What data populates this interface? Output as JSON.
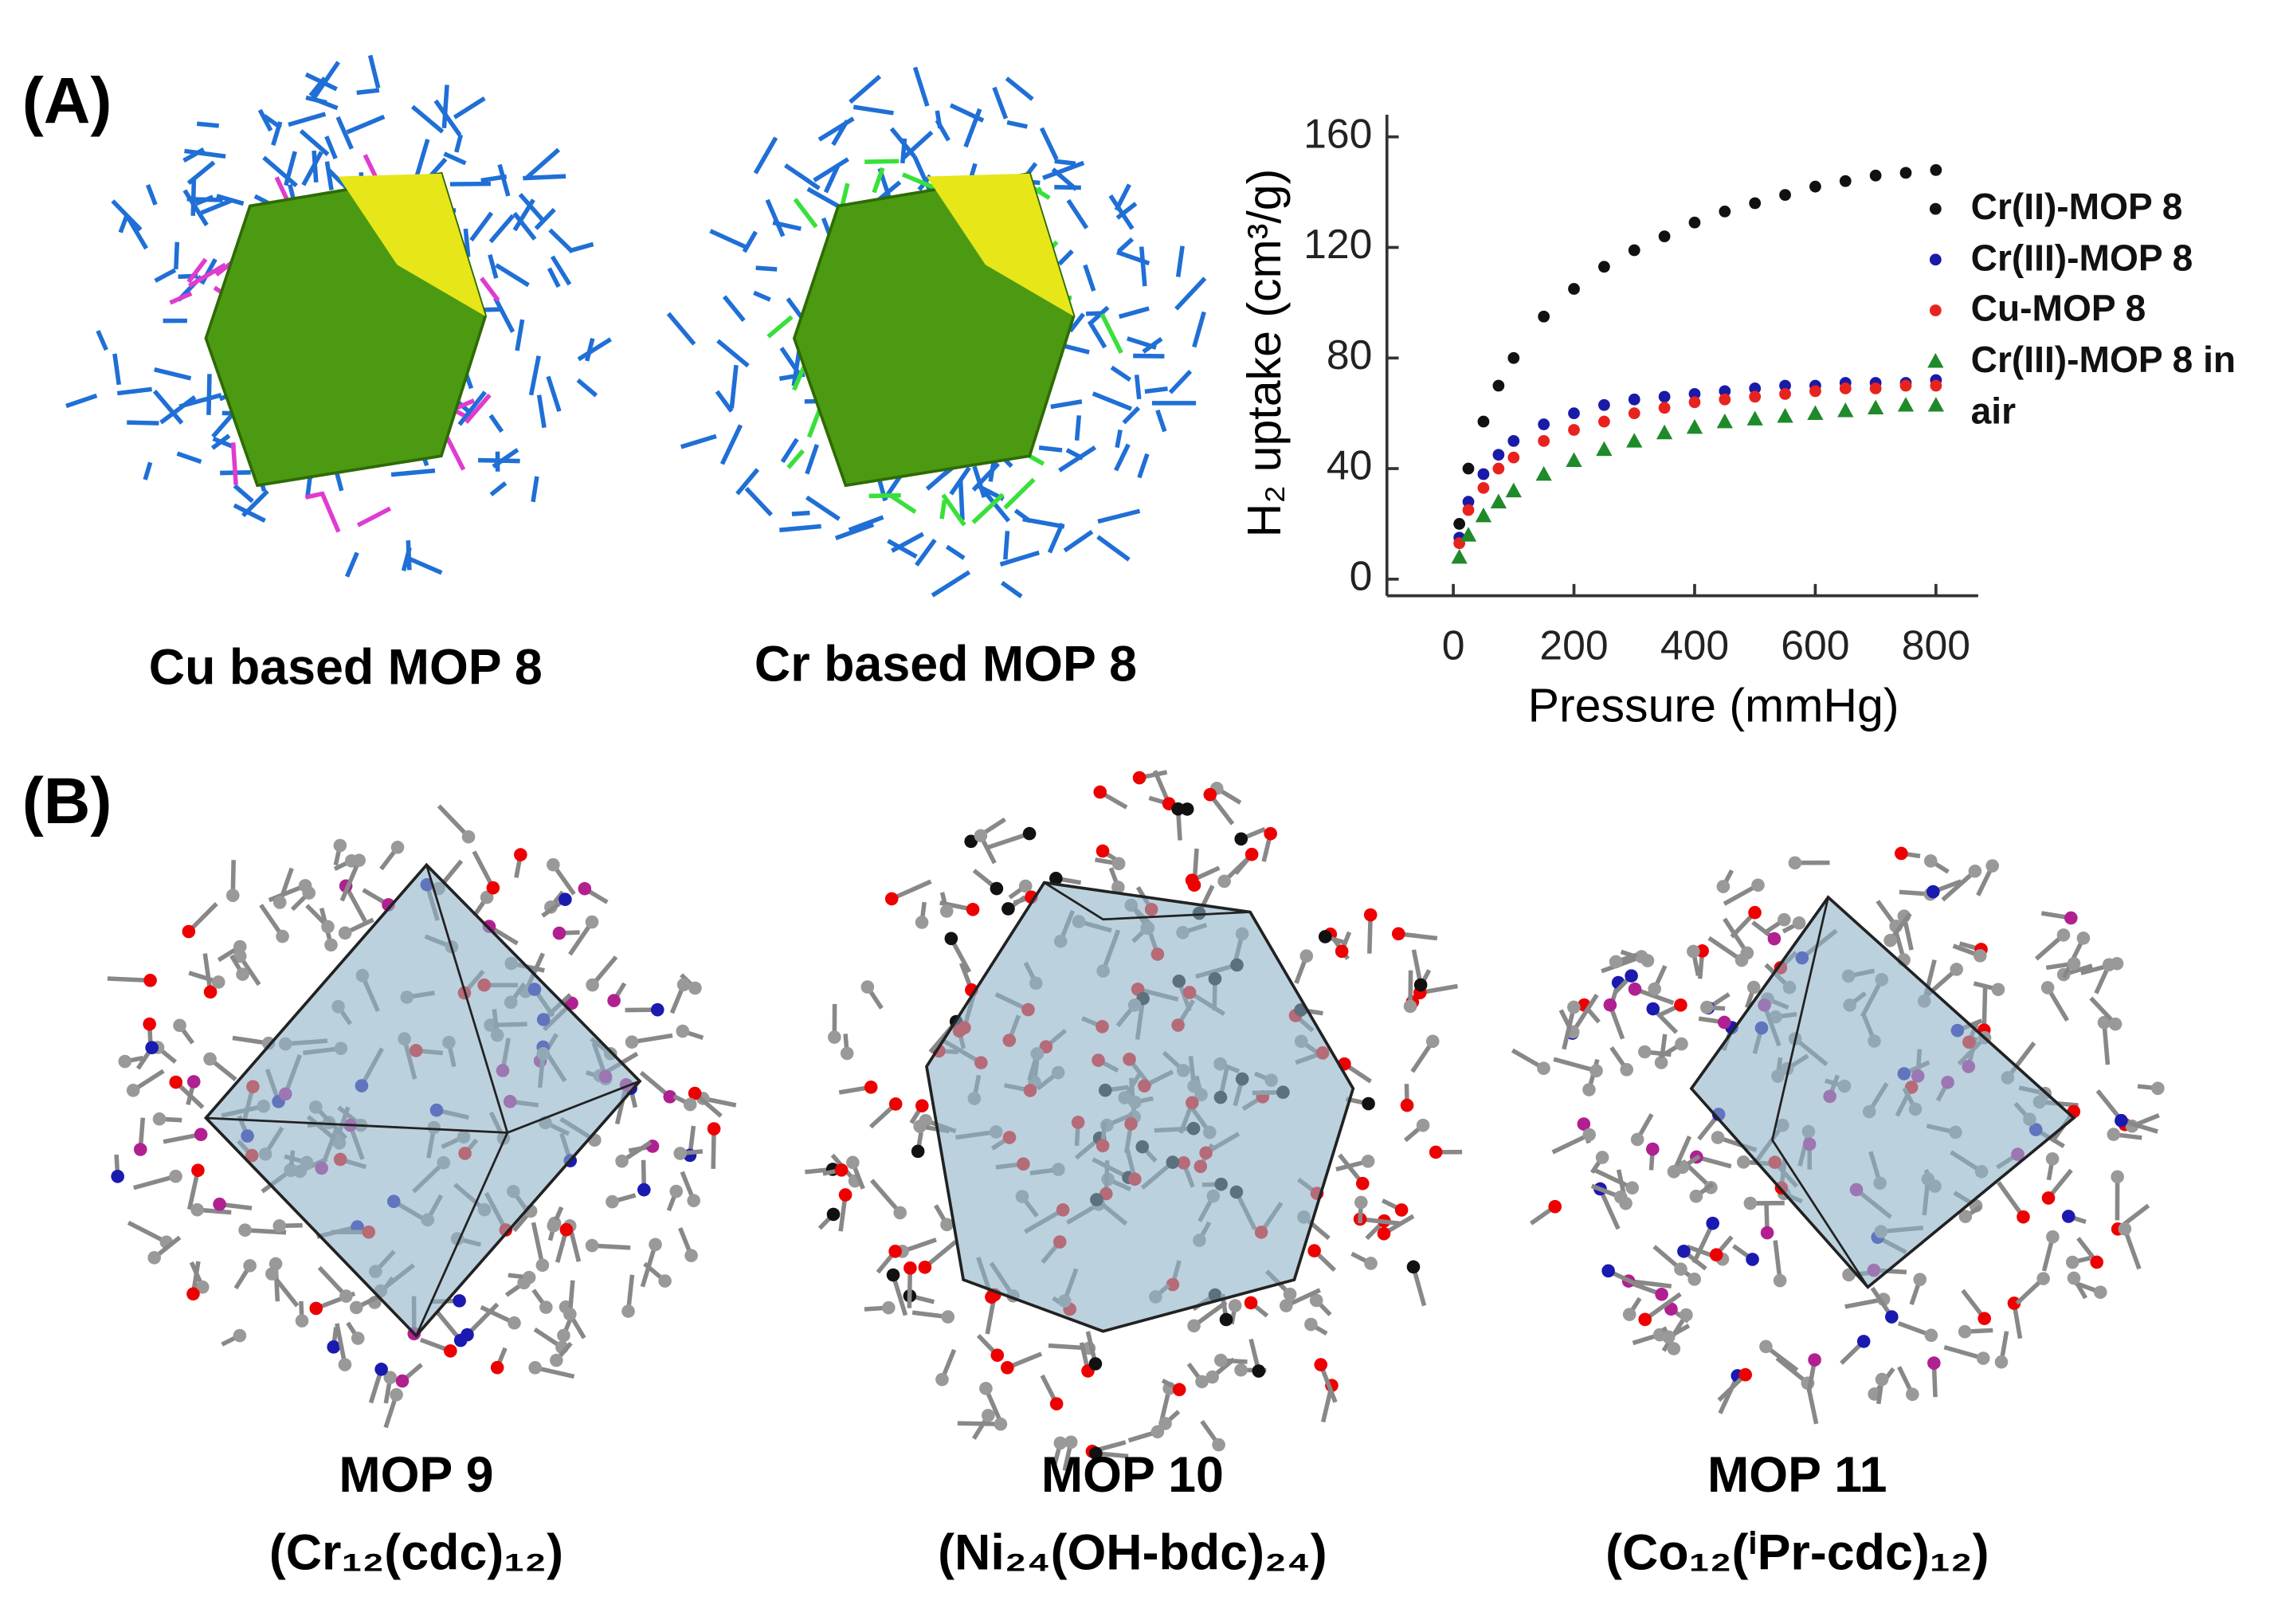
{
  "panels": [
    {
      "label": "(A)"
    },
    {
      "label": "(B)"
    }
  ],
  "structures": [
    {
      "caption": "Cu based MOP 8"
    },
    {
      "caption": "Cr based MOP 8"
    },
    {
      "caption": "MOP 9",
      "formula": "(Cr₁₂(cdc)₁₂)"
    },
    {
      "caption": "MOP 10",
      "formula": "(Ni₂₄(OH-bdc)₂₄)"
    },
    {
      "caption": "MOP 11",
      "formula": "(Co₁₂(ⁱPr-cdc)₁₂)"
    }
  ],
  "chart_data": {
    "type": "scatter",
    "xlabel": "Pressure (mmHg)",
    "ylabel": "H₂ uptake (cm³/g)",
    "x": [
      10,
      25,
      50,
      75,
      100,
      150,
      200,
      250,
      300,
      350,
      400,
      450,
      500,
      550,
      600,
      650,
      700,
      750,
      800
    ],
    "series": [
      {
        "name": "Cr(II)-MOP 8",
        "color": "#111111",
        "marker": "circle",
        "values": [
          20,
          40,
          57,
          70,
          80,
          95,
          105,
          113,
          119,
          124,
          129,
          133,
          136,
          139,
          142,
          144,
          146,
          147,
          148
        ]
      },
      {
        "name": "Cr(III)-MOP 8",
        "color": "#1a1aa8",
        "marker": "circle",
        "values": [
          15,
          28,
          38,
          45,
          50,
          56,
          60,
          63,
          65,
          66,
          67,
          68,
          69,
          70,
          70,
          71,
          71,
          71,
          72
        ]
      },
      {
        "name": "Cu-MOP 8",
        "color": "#e8231e",
        "marker": "circle",
        "values": [
          13,
          25,
          33,
          40,
          44,
          50,
          54,
          57,
          60,
          62,
          64,
          65,
          66,
          67,
          68,
          69,
          69,
          70,
          70
        ]
      },
      {
        "name": "Cr(III)-MOP 8 in air",
        "color": "#1f8a2a",
        "marker": "triangle",
        "values": [
          8,
          16,
          23,
          28,
          32,
          38,
          43,
          47,
          50,
          53,
          55,
          57,
          58,
          59,
          60,
          61,
          62,
          63,
          63
        ]
      }
    ],
    "xlim": [
      -110,
      870
    ],
    "xticks": [
      0,
      200,
      400,
      600,
      800
    ],
    "ylim": [
      -6,
      168
    ],
    "yticks": [
      0,
      40,
      80,
      120,
      160
    ]
  }
}
